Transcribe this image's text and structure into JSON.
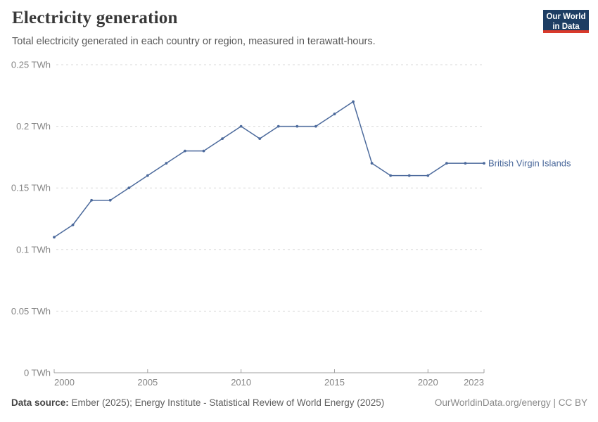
{
  "header": {
    "title": "Electricity generation",
    "subtitle": "Total electricity generated in each country or region, measured in terawatt-hours."
  },
  "logo": {
    "line1": "Our World",
    "line2": "in Data",
    "bg_color": "#1d3d63",
    "accent_color": "#d93a2b"
  },
  "chart_data": {
    "type": "line",
    "title": "Electricity generation",
    "unit": "TWh",
    "xlabel": "",
    "ylabel": "",
    "xlim": [
      2000,
      2023
    ],
    "ylim": [
      0,
      0.25
    ],
    "grid": "horizontal-dashed",
    "legend_position": "end-of-line-label",
    "x_ticks": [
      2000,
      2005,
      2010,
      2015,
      2020,
      2023
    ],
    "y_ticks": [
      {
        "value": 0,
        "label": "0 TWh"
      },
      {
        "value": 0.05,
        "label": "0.05 TWh"
      },
      {
        "value": 0.1,
        "label": "0.1 TWh"
      },
      {
        "value": 0.15,
        "label": "0.15 TWh"
      },
      {
        "value": 0.2,
        "label": "0.2 TWh"
      },
      {
        "value": 0.25,
        "label": "0.25 TWh"
      }
    ],
    "series": [
      {
        "name": "British Virgin Islands",
        "color": "#4C6A9C",
        "x": [
          2000,
          2001,
          2002,
          2003,
          2004,
          2005,
          2006,
          2007,
          2008,
          2009,
          2010,
          2011,
          2012,
          2013,
          2014,
          2015,
          2016,
          2017,
          2018,
          2019,
          2020,
          2021,
          2022,
          2023
        ],
        "values": [
          0.11,
          0.12,
          0.14,
          0.14,
          0.15,
          0.16,
          0.17,
          0.18,
          0.18,
          0.19,
          0.2,
          0.19,
          0.2,
          0.2,
          0.2,
          0.21,
          0.22,
          0.17,
          0.16,
          0.16,
          0.16,
          0.17,
          0.17,
          0.17
        ]
      }
    ]
  },
  "footer": {
    "source_label": "Data source:",
    "source_text": "Ember (2025); Energy Institute - Statistical Review of World Energy (2025)",
    "rights": "OurWorldinData.org/energy | CC BY"
  }
}
